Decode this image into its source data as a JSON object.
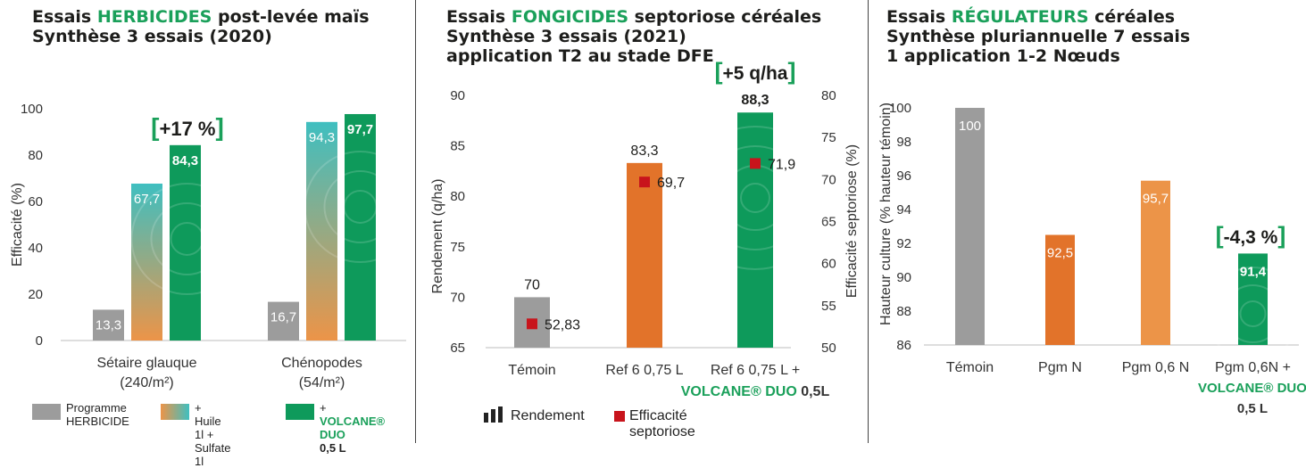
{
  "colors": {
    "green": "#0e9a5b",
    "grey": "#9c9c9c",
    "orange": "#e2732a",
    "light_orange": "#ec9448",
    "teal": "#3fbfc0",
    "red_marker": "#c8141c",
    "title_green": "#1aa05a"
  },
  "panel1": {
    "title_prefix": "Essais ",
    "title_highlight": "HERBICIDES",
    "title_suffix": " post-levée maïs",
    "title_line2": "Synthèse 3 essais (2020)",
    "gain_label": "[+17 %]",
    "legend": {
      "item1": "Programme HERBICIDE",
      "item1_line1": "Programme",
      "item1_line2": "HERBICIDE",
      "item2_line1": "+ Huile 1l +",
      "item2_line2": "Sulfate 1l",
      "item3_prefix": "+ ",
      "item3_brand": "VOLCANE® DUO",
      "item3_dose": "0,5 L"
    }
  },
  "panel2": {
    "title_prefix": "Essais ",
    "title_highlight": "FONGICIDES",
    "title_suffix": " septoriose céréales",
    "title_line2": "Synthèse 3 essais (2021)",
    "title_line3": "application T2 au stade DFE",
    "gain_label": "[+5 q/ha]",
    "cat3_brand": "VOLCANE® DUO",
    "cat3_dose": " 0,5L",
    "legend": {
      "bars": "Rendement",
      "markers": "Efficacité septoriose"
    }
  },
  "panel3": {
    "title_prefix": "Essais ",
    "title_highlight": "RÉGULATEURS",
    "title_suffix": " céréales",
    "title_line2": "Synthèse pluriannuelle 7 essais",
    "title_line3": "1 application 1-2 Nœuds",
    "gain_label": "[-4,3 %]",
    "cat4_brand": "VOLCANE® DUO",
    "cat4_dose": "0,5 L"
  },
  "chart_data": [
    {
      "type": "bar",
      "title": "Essais HERBICIDES post-levée maïs — Synthèse 3 essais (2020)",
      "categories": [
        "Sétaire glauque (240/m²)",
        "Chénopodes (54/m²)"
      ],
      "category_lines": [
        [
          "Sétaire glauque",
          "(240/m²)"
        ],
        [
          "Chénopodes",
          "(54/m²)"
        ]
      ],
      "ylabel": "Efficacité (%)",
      "ylim": [
        0,
        100
      ],
      "yticks": [
        0,
        20,
        40,
        60,
        80,
        100
      ],
      "series": [
        {
          "name": "Programme HERBICIDE",
          "values": [
            13.3,
            16.7
          ],
          "labels": [
            "13,3",
            "16,7"
          ]
        },
        {
          "name": "+ Huile 1l + Sulfate 1l",
          "values": [
            67.7,
            94.3
          ],
          "labels": [
            "67,7",
            "94,3"
          ]
        },
        {
          "name": "+ VOLCANE® DUO 0,5 L",
          "values": [
            84.3,
            97.7
          ],
          "labels": [
            "84,3",
            "97,7"
          ]
        }
      ],
      "legend": "bottom",
      "grid": false
    },
    {
      "type": "bar",
      "title": "Essais FONGICIDES septoriose céréales — Synthèse 3 essais (2021) — application T2 au stade DFE",
      "categories": [
        "Témoin",
        "Ref 6 0,75 L",
        "Ref 6 0,75 L + VOLCANE® DUO 0,5L"
      ],
      "category_lines": [
        [
          "Témoin"
        ],
        [
          "Ref 6 0,75 L"
        ],
        [
          "Ref 6 0,75 L +"
        ]
      ],
      "ylabel": "Rendement (q/ha)",
      "ylim": [
        65,
        90
      ],
      "yticks": [
        65,
        70,
        75,
        80,
        85,
        90
      ],
      "y2label": "Efficacité septoriose (%)",
      "y2lim": [
        50,
        80
      ],
      "y2ticks": [
        50,
        55,
        60,
        65,
        70,
        75,
        80
      ],
      "series": [
        {
          "name": "Rendement",
          "values": [
            70,
            83.3,
            88.3
          ],
          "labels": [
            "70",
            "83,3",
            "88,3"
          ]
        },
        {
          "name": "Efficacité septoriose",
          "axis": "right",
          "values": [
            52.83,
            69.7,
            71.9
          ],
          "labels": [
            "52,83",
            "69,7",
            "71,9"
          ]
        }
      ],
      "legend": "bottom",
      "grid": false
    },
    {
      "type": "bar",
      "title": "Essais RÉGULATEURS céréales — Synthèse pluriannuelle 7 essais — 1 application 1-2 Nœuds",
      "categories": [
        "Témoin",
        "Pgm N",
        "Pgm 0,6 N",
        "Pgm 0,6N + VOLCANE® DUO 0,5 L"
      ],
      "category_lines": [
        [
          "Témoin"
        ],
        [
          "Pgm N"
        ],
        [
          "Pgm 0,6 N"
        ],
        [
          "Pgm 0,6N +"
        ]
      ],
      "ylabel": "Hauteur culture (% hauteur témoin)",
      "ylim": [
        86,
        100
      ],
      "yticks": [
        86,
        88,
        90,
        92,
        94,
        96,
        98,
        100
      ],
      "values": [
        100,
        92.5,
        95.7,
        91.4
      ],
      "labels": [
        "100",
        "92,5",
        "95,7",
        "91,4"
      ],
      "grid": false
    }
  ]
}
